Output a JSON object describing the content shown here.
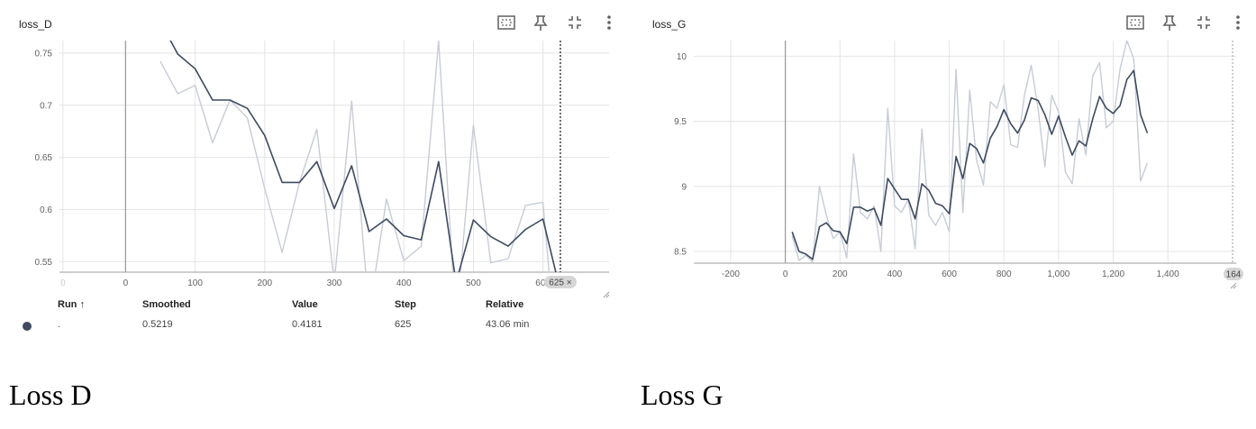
{
  "colors": {
    "smoothed": "#3d4a60",
    "raw": "#c7ccd6",
    "grid": "#e4e4e4",
    "zero_axis": "#9e9e9e",
    "badge": "#d6d6d6",
    "run_dot": "#3d4a60"
  },
  "icons": [
    "fit-domain-icon",
    "pin-icon",
    "collapse-icon",
    "more-vert-icon"
  ],
  "loss_d": {
    "title": "loss_D",
    "hover_step_badge": "625 ×",
    "table": {
      "headers": {
        "run": "Run ↑",
        "smoothed": "Smoothed",
        "value": "Value",
        "step": "Step",
        "relative": "Relative"
      },
      "row": {
        "run": ".",
        "smoothed": "0.5219",
        "value": "0.4181",
        "step": "625",
        "relative": "43.06 min"
      }
    }
  },
  "loss_g": {
    "title": "loss_G",
    "edge_badge": "164"
  },
  "captions": {
    "d": "Loss D",
    "g": "Loss G"
  },
  "chart_data": [
    {
      "type": "line",
      "title": "loss_D",
      "xlabel": "",
      "ylabel": "",
      "xlim": [
        -95,
        695
      ],
      "ylim": [
        0.54,
        0.762
      ],
      "x_ticks": [
        "0",
        "0",
        "100",
        "200",
        "300",
        "400",
        "500",
        "600"
      ],
      "x_tick_values": [
        -90,
        0,
        100,
        200,
        300,
        400,
        500,
        600
      ],
      "y_ticks": [
        "0.55",
        "0.6",
        "0.65",
        "0.7",
        "0.75"
      ],
      "y_tick_values": [
        0.55,
        0.6,
        0.65,
        0.7,
        0.75
      ],
      "grid": true,
      "hover_step": 625,
      "series": [
        {
          "x": [
            50,
            75,
            100,
            125,
            150,
            175,
            200,
            225,
            250,
            275,
            300,
            325,
            350,
            375,
            400,
            425,
            450,
            475,
            500,
            525,
            550,
            575,
            600,
            625
          ],
          "values": [
            0.742,
            0.711,
            0.719,
            0.664,
            0.705,
            0.688,
            0.62,
            0.559,
            0.626,
            0.677,
            0.53,
            0.704,
            0.5,
            0.61,
            0.551,
            0.565,
            0.762,
            0.49,
            0.681,
            0.549,
            0.553,
            0.604,
            0.607,
            0.418
          ]
        },
        {
          "x": [
            50,
            75,
            100,
            125,
            150,
            175,
            200,
            225,
            250,
            275,
            300,
            325,
            350,
            375,
            400,
            425,
            450,
            475,
            500,
            525,
            550,
            575,
            600,
            625
          ],
          "values": [
            0.78,
            0.749,
            0.735,
            0.705,
            0.705,
            0.697,
            0.671,
            0.626,
            0.626,
            0.646,
            0.601,
            0.642,
            0.579,
            0.591,
            0.575,
            0.571,
            0.646,
            0.53,
            0.59,
            0.574,
            0.565,
            0.581,
            0.591,
            0.522
          ]
        }
      ]
    },
    {
      "type": "line",
      "title": "loss_G",
      "xlabel": "",
      "ylabel": "",
      "xlim": [
        -335,
        1650
      ],
      "ylim": [
        8.41,
        10.12
      ],
      "x_ticks": [
        "-200",
        "0",
        "200",
        "400",
        "600",
        "800",
        "1,000",
        "1,200",
        "1,400"
      ],
      "x_tick_values": [
        -200,
        0,
        200,
        400,
        600,
        800,
        1000,
        1200,
        1400
      ],
      "y_ticks": [
        "8.5",
        "9",
        "9.5",
        "10"
      ],
      "y_tick_values": [
        8.5,
        9,
        9.5,
        10
      ],
      "grid": true,
      "series": [
        {
          "x": [
            25,
            50,
            75,
            100,
            125,
            150,
            175,
            200,
            225,
            250,
            275,
            300,
            325,
            350,
            375,
            400,
            425,
            450,
            475,
            500,
            525,
            550,
            575,
            600,
            625,
            650,
            675,
            700,
            725,
            750,
            775,
            800,
            825,
            850,
            875,
            900,
            925,
            950,
            975,
            1000,
            1025,
            1050,
            1075,
            1100,
            1125,
            1150,
            1175,
            1200,
            1225,
            1250,
            1275,
            1300,
            1325
          ],
          "values": [
            8.62,
            8.43,
            8.47,
            8.42,
            9.0,
            8.78,
            8.6,
            8.65,
            8.45,
            9.25,
            8.8,
            8.75,
            8.85,
            8.5,
            9.6,
            8.85,
            8.8,
            8.9,
            8.52,
            9.44,
            8.78,
            8.7,
            8.8,
            8.65,
            9.9,
            8.8,
            9.74,
            9.2,
            9.01,
            9.65,
            9.6,
            9.78,
            9.32,
            9.3,
            9.7,
            9.93,
            9.6,
            9.15,
            9.7,
            9.57,
            9.11,
            9.02,
            9.52,
            9.24,
            9.85,
            9.95,
            9.45,
            9.5,
            9.9,
            10.12,
            9.98,
            9.04,
            9.18
          ]
        },
        {
          "x": [
            25,
            50,
            75,
            100,
            125,
            150,
            175,
            200,
            225,
            250,
            275,
            300,
            325,
            350,
            375,
            400,
            425,
            450,
            475,
            500,
            525,
            550,
            575,
            600,
            625,
            650,
            675,
            700,
            725,
            750,
            775,
            800,
            825,
            850,
            875,
            900,
            925,
            950,
            975,
            1000,
            1025,
            1050,
            1075,
            1100,
            1125,
            1150,
            1175,
            1200,
            1225,
            1250,
            1275,
            1300,
            1325
          ],
          "values": [
            8.65,
            8.5,
            8.48,
            8.44,
            8.69,
            8.72,
            8.66,
            8.65,
            8.56,
            8.84,
            8.84,
            8.81,
            8.83,
            8.7,
            9.06,
            8.98,
            8.9,
            8.9,
            8.75,
            9.02,
            8.97,
            8.87,
            8.85,
            8.79,
            9.23,
            9.06,
            9.33,
            9.29,
            9.18,
            9.37,
            9.46,
            9.59,
            9.48,
            9.41,
            9.51,
            9.68,
            9.66,
            9.55,
            9.4,
            9.54,
            9.38,
            9.24,
            9.35,
            9.31,
            9.52,
            9.69,
            9.6,
            9.56,
            9.62,
            9.82,
            9.89,
            9.55,
            9.41
          ]
        }
      ]
    }
  ]
}
